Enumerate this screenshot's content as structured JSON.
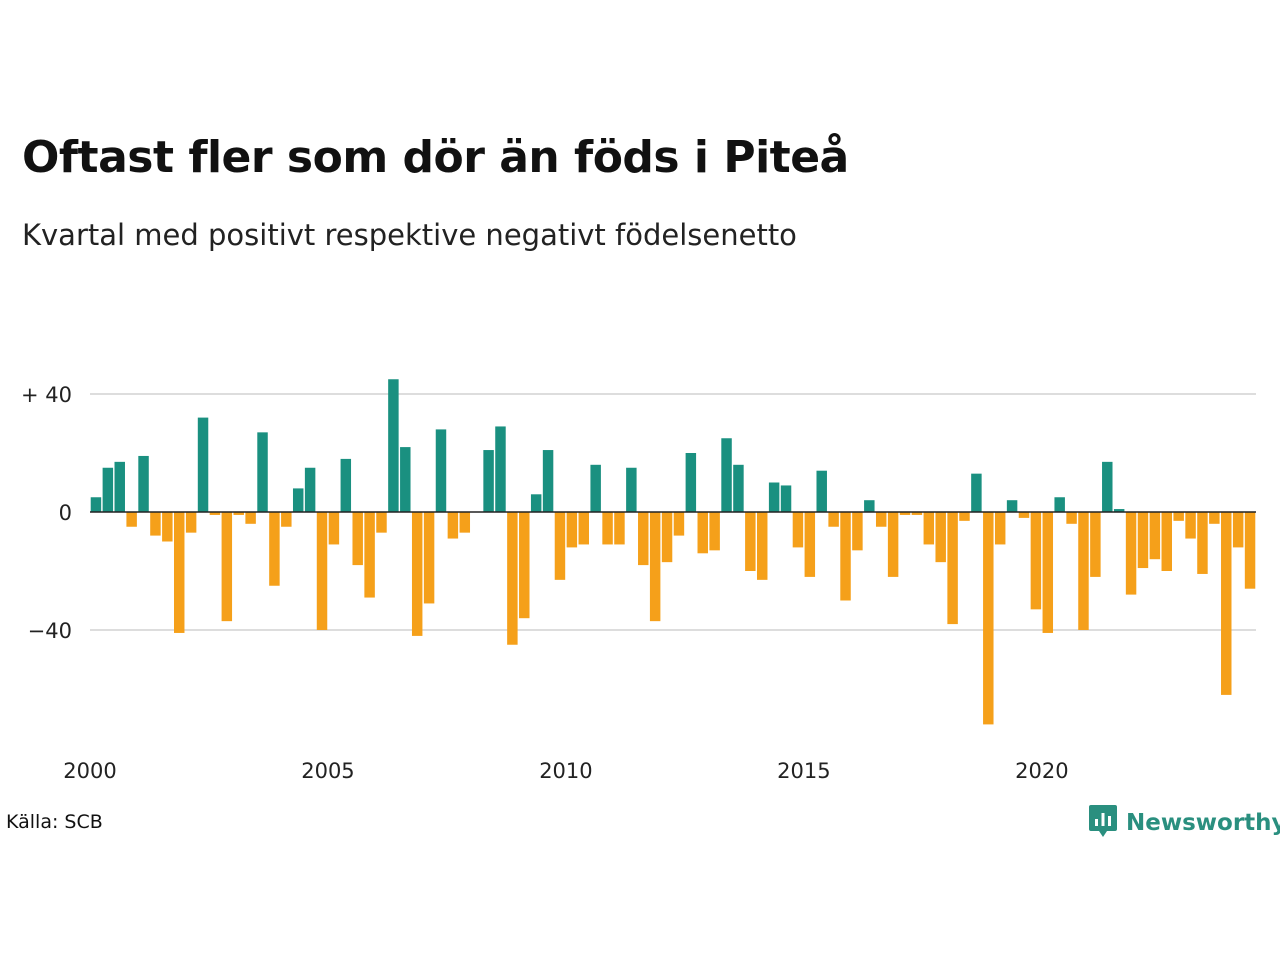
{
  "title": "Oftast fler som dör än föds i Piteå",
  "subtitle": "Kvartal med positivt respektive negativt födelsenetto",
  "source": "Källa: SCB",
  "brand": {
    "name": "Newsworthy",
    "icon": "newsworthy-logo-icon"
  },
  "colors": {
    "positive": "#1a9080",
    "negative": "#f5a01a",
    "grid": "#dddddd",
    "axis": "#222222"
  },
  "chart_data": {
    "type": "bar",
    "title": "Oftast fler som dör än föds i Piteå",
    "subtitle": "Kvartal med positivt respektive negativt födelsenetto",
    "xlabel": "",
    "ylabel": "",
    "ylim": [
      -72,
      45
    ],
    "y_ticks": [
      {
        "value": 40,
        "label": "+ 40"
      },
      {
        "value": 0,
        "label": "0"
      },
      {
        "value": -40,
        "label": "−40"
      }
    ],
    "x_ticks": [
      {
        "value": 2000,
        "label": "2000"
      },
      {
        "value": 2005,
        "label": "2005"
      },
      {
        "value": 2010,
        "label": "2010"
      },
      {
        "value": 2015,
        "label": "2015"
      },
      {
        "value": 2020,
        "label": "2020"
      }
    ],
    "x_range": [
      2000,
      2024.75
    ],
    "grid": true,
    "legend": "none",
    "series": [
      {
        "start_year": 2000,
        "quarters_per_year": 4,
        "values": [
          5,
          15,
          17,
          -5,
          19,
          -8,
          -10,
          -41,
          -7,
          32,
          -1,
          -37,
          -1,
          -4,
          27,
          -25,
          -5,
          8,
          15,
          -40,
          -11,
          18,
          -18,
          -29,
          -7,
          45,
          22,
          -42,
          -31,
          28,
          -9,
          -7,
          0,
          21,
          29,
          -45,
          -36,
          6,
          21,
          -23,
          -12,
          -11,
          16,
          -11,
          -11,
          15,
          -18,
          -37,
          -17,
          -8,
          20,
          -14,
          -13,
          25,
          16,
          -20,
          -23,
          10,
          9,
          -12,
          -22,
          14,
          -5,
          -30,
          -13,
          4,
          -5,
          -22,
          -1,
          -1,
          -11,
          -17,
          -38,
          -3,
          13,
          -72,
          -11,
          4,
          -2,
          -33,
          -41,
          5,
          -4,
          -40,
          -22,
          17,
          1,
          -28,
          -19,
          -16,
          -20,
          -3,
          -9,
          -21,
          -4,
          -62,
          -12,
          -26
        ]
      }
    ]
  }
}
